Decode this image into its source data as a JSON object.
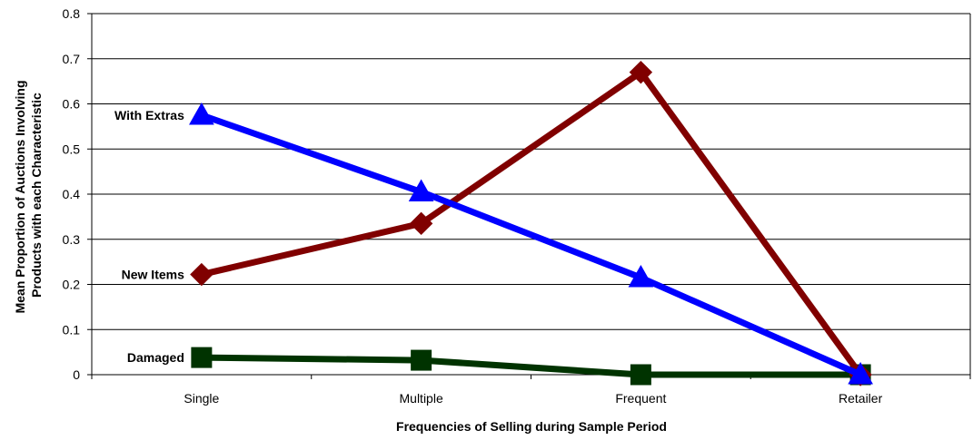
{
  "chart_data": {
    "type": "line",
    "title": "",
    "xlabel": "Frequencies of Selling during Sample Period",
    "ylabel_lines": [
      "Mean Proportion of Auctions Involving",
      "Products with each Characteristic"
    ],
    "categories": [
      "Single",
      "Multiple",
      "Frequent",
      "Retailer"
    ],
    "ylim": [
      0,
      0.8
    ],
    "yticks": [
      "0",
      "0.1",
      "0.2",
      "0.3",
      "0.4",
      "0.5",
      "0.6",
      "0.7",
      "0.8"
    ],
    "grid": true,
    "legend": "none",
    "series": [
      {
        "name": "With Extras",
        "color": "#0000ff",
        "marker": "triangle",
        "values": [
          0.575,
          0.405,
          0.215,
          0.0
        ]
      },
      {
        "name": "New Items",
        "color": "#800000",
        "marker": "diamond",
        "values": [
          0.222,
          0.335,
          0.67,
          0.0
        ]
      },
      {
        "name": "Damaged",
        "color": "#003300",
        "marker": "square",
        "values": [
          0.038,
          0.032,
          0.0,
          0.0
        ]
      }
    ]
  }
}
